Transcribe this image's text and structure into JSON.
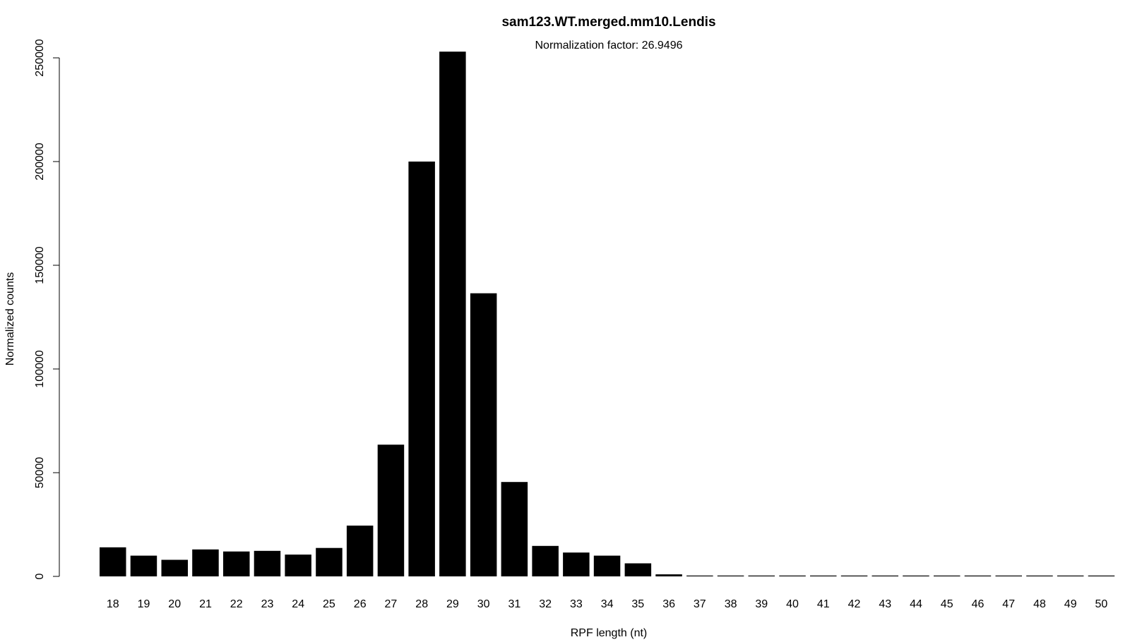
{
  "chart_data": {
    "type": "bar",
    "title": "sam123.WT.merged.mm10.Lendis",
    "subtitle": "Normalization factor: 26.9496",
    "xlabel": "RPF length (nt)",
    "ylabel": "Normalized counts",
    "ylim": [
      0,
      250000
    ],
    "yticks": [
      "0",
      "50000",
      "100000",
      "150000",
      "200000",
      "250000"
    ],
    "categories": [
      "18",
      "19",
      "20",
      "21",
      "22",
      "23",
      "24",
      "25",
      "26",
      "27",
      "28",
      "29",
      "30",
      "31",
      "32",
      "33",
      "34",
      "35",
      "36",
      "37",
      "38",
      "39",
      "40",
      "41",
      "42",
      "43",
      "44",
      "45",
      "46",
      "47",
      "48",
      "49",
      "50"
    ],
    "values": [
      14000,
      10000,
      8000,
      13000,
      12000,
      12300,
      10500,
      13700,
      24500,
      63500,
      200000,
      253000,
      136500,
      45500,
      14700,
      11500,
      10000,
      6300,
      1000,
      200,
      150,
      120,
      100,
      100,
      100,
      100,
      100,
      100,
      100,
      100,
      100,
      100,
      100
    ],
    "bar_color": "#000000",
    "grid": false,
    "legend": "none"
  }
}
